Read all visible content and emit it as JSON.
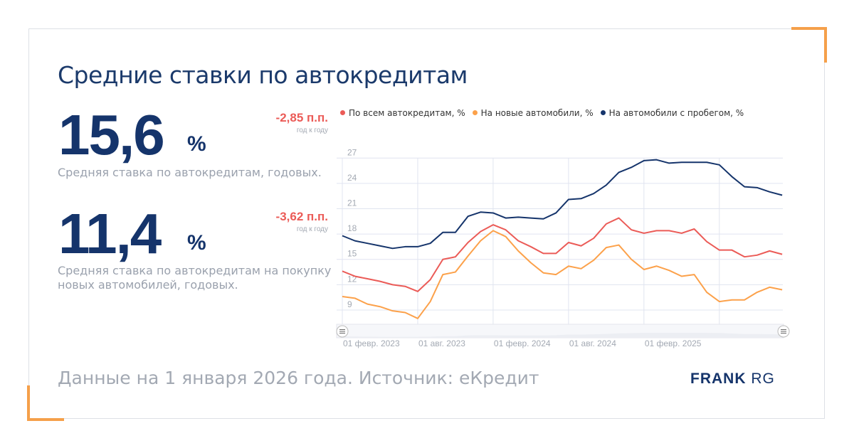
{
  "title": "Средние ставки по автокредитам",
  "kpis": [
    {
      "value": "15,6",
      "unit": "%",
      "description": "Средняя ставка по автокредитам, годовых.",
      "change": "-2,85 п.п.",
      "change_period": "год к году"
    },
    {
      "value": "11,4",
      "unit": "%",
      "description_lines": [
        "Средняя ставка по автокредитам на покупку",
        "новых автомобилей, годовых."
      ],
      "change": "-3,62 п.п.",
      "change_period": "год к году"
    }
  ],
  "footer": "Данные на 1 января 2026 года. Источник: еКредит",
  "logo": {
    "bold": "FRANK",
    "light": "RG"
  },
  "colors": {
    "accent": "#f5a04a",
    "navy": "#15346b",
    "red": "#eb5b57",
    "orange": "#fca14a"
  },
  "chart_data": {
    "type": "line",
    "x_start": "2023-02",
    "x_step": "month",
    "x_ticks": [
      {
        "index": 0,
        "label": "01 февр. 2023"
      },
      {
        "index": 6,
        "label": "01 авг. 2023"
      },
      {
        "index": 12,
        "label": "01 февр. 2024"
      },
      {
        "index": 18,
        "label": "01 авг. 2024"
      },
      {
        "index": 24,
        "label": "01 февр. 2025"
      },
      {
        "index": 30,
        "label": ""
      }
    ],
    "y_ticks": [
      9,
      12,
      15,
      18,
      21,
      24,
      27
    ],
    "ylim": [
      7.5,
      27
    ],
    "grid": true,
    "legend_position": "top",
    "series": [
      {
        "name": "По всем автокредитам, %",
        "color": "#eb5b57",
        "values": [
          13.6,
          13.0,
          12.7,
          12.4,
          12.0,
          11.8,
          11.2,
          12.6,
          15.0,
          15.3,
          17.0,
          18.3,
          19.1,
          18.5,
          17.2,
          16.5,
          15.7,
          15.7,
          17.0,
          16.6,
          17.5,
          19.2,
          19.9,
          18.5,
          18.1,
          18.4,
          18.4,
          18.1,
          18.6,
          17.1,
          16.1,
          16.1,
          15.3,
          15.5,
          16.0,
          15.6
        ]
      },
      {
        "name": "На новые автомобили, %",
        "color": "#fca14a",
        "values": [
          10.6,
          10.4,
          9.7,
          9.4,
          8.9,
          8.7,
          8.0,
          10.0,
          13.2,
          13.5,
          15.4,
          17.2,
          18.4,
          17.7,
          16.0,
          14.6,
          13.4,
          13.2,
          14.2,
          13.9,
          14.9,
          16.4,
          16.7,
          15.0,
          13.8,
          14.2,
          13.7,
          13.0,
          13.2,
          11.1,
          10.0,
          10.2,
          10.2,
          11.1,
          11.7,
          11.4
        ]
      },
      {
        "name": "На автомобили с пробегом, %",
        "color": "#15346b",
        "values": [
          17.8,
          17.2,
          16.9,
          16.6,
          16.3,
          16.5,
          16.5,
          16.9,
          18.2,
          18.2,
          20.1,
          20.6,
          20.5,
          19.9,
          20.0,
          19.9,
          19.8,
          20.5,
          22.1,
          22.2,
          22.8,
          23.8,
          25.3,
          25.9,
          26.7,
          26.8,
          26.4,
          26.5,
          26.5,
          26.5,
          26.2,
          24.8,
          23.6,
          23.5,
          23.0,
          22.6
        ]
      }
    ]
  }
}
